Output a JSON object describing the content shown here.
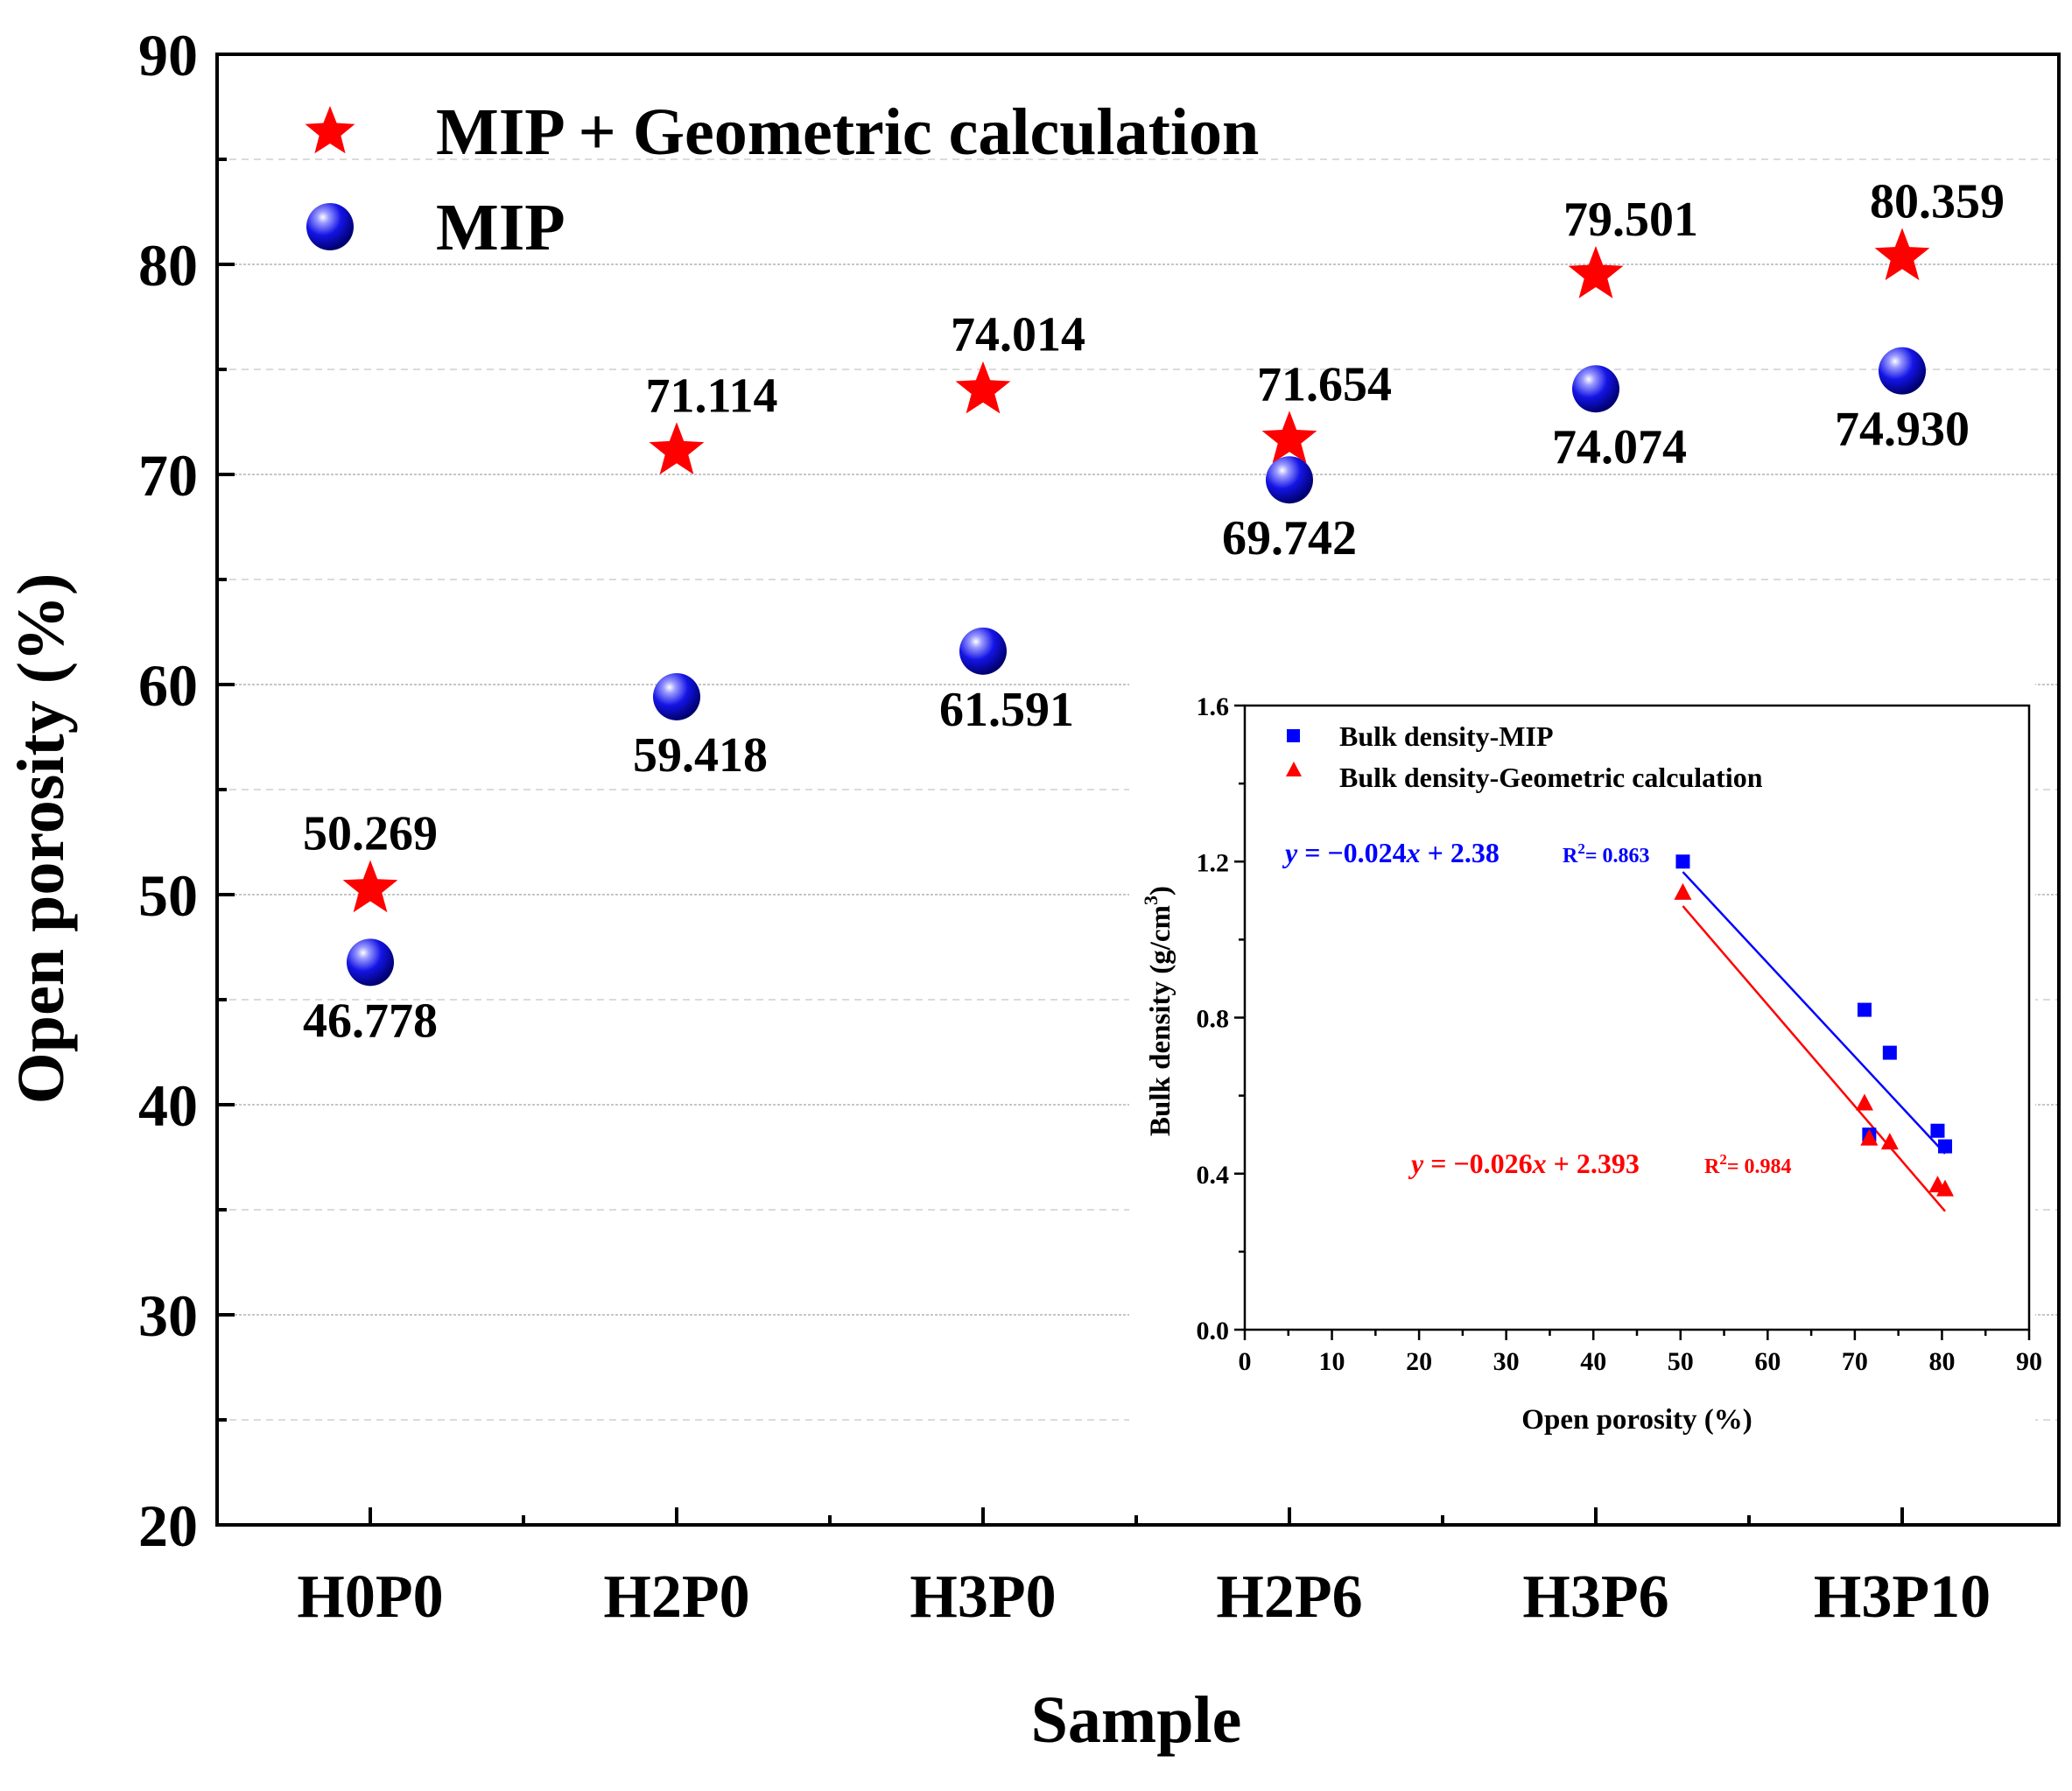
{
  "chart_data": [
    {
      "type": "scatter",
      "xlabel": "Sample",
      "ylabel": "Open porosity (%)",
      "ylim": [
        20,
        90
      ],
      "yticks": [
        20,
        30,
        40,
        50,
        60,
        70,
        80,
        90
      ],
      "categories": [
        "H0P0",
        "H2P0",
        "H3P0",
        "H2P6",
        "H3P6",
        "H3P10"
      ],
      "legend_position": "top-left",
      "grid": true,
      "series": [
        {
          "name": "MIP + Geometric calculation",
          "marker": "star",
          "color": "#ff0000",
          "values": [
            50.269,
            71.114,
            74.014,
            71.654,
            79.501,
            80.359
          ],
          "labels": [
            "50.269",
            "71.114",
            "74.014",
            "71.654",
            "79.501",
            "80.359"
          ]
        },
        {
          "name": "MIP",
          "marker": "sphere",
          "color": "#1010ee",
          "values": [
            46.778,
            59.418,
            61.591,
            69.742,
            74.074,
            74.93
          ],
          "labels": [
            "46.778",
            "59.418",
            "61.591",
            "69.742",
            "74.074",
            "74.930"
          ]
        }
      ]
    },
    {
      "type": "scatter",
      "inset": true,
      "xlabel": "Open porosity (%)",
      "ylabel": "Bulk density (g/cm3)",
      "xlim": [
        0,
        90
      ],
      "ylim": [
        0.0,
        1.6
      ],
      "xticks": [
        0,
        10,
        20,
        30,
        40,
        50,
        60,
        70,
        80,
        90
      ],
      "yticks": [
        "0.0",
        "0.4",
        "0.8",
        "1.2",
        "1.6"
      ],
      "legend_position": "top-left",
      "series": [
        {
          "name": "Bulk density-MIP",
          "marker": "square",
          "color": "#0000ff",
          "x": [
            50.269,
            71.114,
            71.654,
            74.014,
            79.501,
            80.359
          ],
          "y": [
            1.2,
            0.82,
            0.5,
            0.71,
            0.51,
            0.47
          ],
          "fit": {
            "slope": -0.024,
            "intercept": 2.38,
            "x_range": [
              50.269,
              80.359
            ],
            "equation": "y = −0.024x + 2.38",
            "r2_label": "R",
            "r2_value": "= 0.863"
          }
        },
        {
          "name": "Bulk density-Geometric calculation",
          "marker": "triangle",
          "color": "#ff0000",
          "x": [
            50.269,
            71.114,
            71.654,
            74.014,
            79.501,
            80.359
          ],
          "y": [
            1.12,
            0.58,
            0.49,
            0.48,
            0.37,
            0.36
          ],
          "fit": {
            "slope": -0.026,
            "intercept": 2.393,
            "x_range": [
              50.269,
              80.359
            ],
            "equation": "y = −0.026x + 2.393",
            "r2_label": "R",
            "r2_value": "= 0.984"
          }
        }
      ]
    }
  ]
}
